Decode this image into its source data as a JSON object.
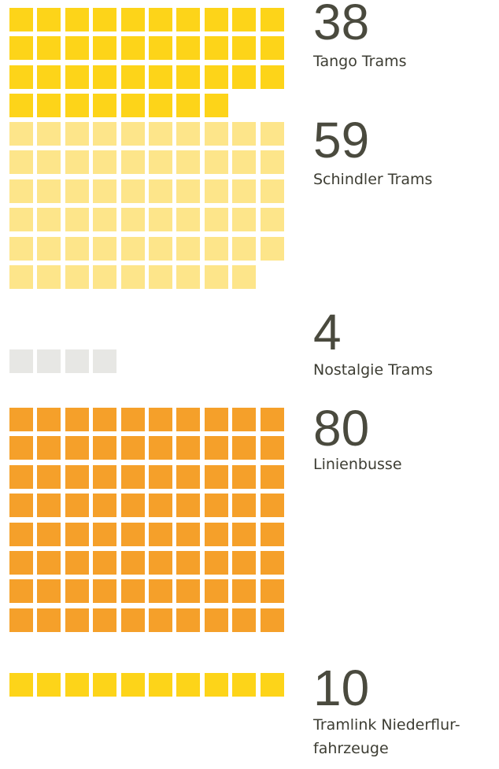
{
  "chart_data": {
    "type": "waffle",
    "groups": [
      {
        "value": 38,
        "label": "Tango Trams",
        "color": "#fdd419"
      },
      {
        "value": 59,
        "label": "Schindler Trams",
        "color": "#fde58a"
      },
      {
        "value": 4,
        "label": "Nostalgie Trams",
        "color": "#e7e7e4"
      },
      {
        "value": 80,
        "label": "Linienbusse",
        "color": "#f5a02a"
      },
      {
        "value": 10,
        "label": "Tramlink Niederflur-fahrzeuge",
        "color": "#fdd419"
      }
    ]
  }
}
